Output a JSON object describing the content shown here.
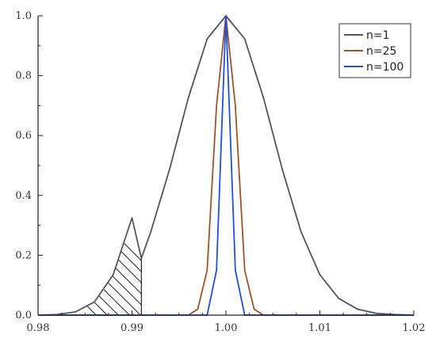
{
  "chart_data": {
    "type": "line",
    "title": "",
    "xlabel": "",
    "ylabel": "",
    "xlim": [
      0.98,
      1.02
    ],
    "ylim": [
      0,
      1.0
    ],
    "x_ticks": [
      0.98,
      0.99,
      1.0,
      1.01,
      1.02
    ],
    "x_tick_labels": [
      "0.98",
      "0.99",
      "1.00",
      "1.01",
      "1.02"
    ],
    "y_ticks": [
      0,
      0.2,
      0.4,
      0.6,
      0.8,
      1.0
    ],
    "y_tick_labels": [
      "0.0",
      "0.2",
      "0.4",
      "0.6",
      "0.8",
      "1.0"
    ],
    "grid": false,
    "legend": "top-right",
    "series": [
      {
        "name": "n=1",
        "color": "#555555",
        "x": [
          0.98,
          0.982,
          0.984,
          0.986,
          0.988,
          0.99,
          0.991,
          0.992,
          0.994,
          0.996,
          0.998,
          1.0,
          1.002,
          1.004,
          1.006,
          1.008,
          1.01,
          1.012,
          1.014,
          1.016,
          1.018,
          1.02
        ],
        "y": [
          0.0,
          0.002,
          0.011,
          0.044,
          0.135,
          0.325,
          0.19,
          0.278,
          0.487,
          0.726,
          0.923,
          1.0,
          0.923,
          0.726,
          0.487,
          0.278,
          0.135,
          0.056,
          0.02,
          0.006,
          0.002,
          0.0
        ]
      },
      {
        "name": "n=25",
        "color": "#a0522d",
        "x": [
          0.98,
          0.996,
          0.997,
          0.998,
          0.999,
          1.0,
          1.001,
          1.002,
          1.003,
          1.004,
          1.02
        ],
        "y": [
          0.0,
          0.0,
          0.02,
          0.15,
          0.7,
          1.0,
          0.7,
          0.15,
          0.02,
          0.0,
          0.0
        ]
      },
      {
        "name": "n=100",
        "color": "#1f4fd8",
        "x": [
          0.98,
          0.998,
          0.999,
          1.0,
          1.001,
          1.002,
          1.02
        ],
        "y": [
          0.0,
          0.0,
          0.15,
          1.0,
          0.15,
          0.0,
          0.0
        ]
      }
    ],
    "shaded_region": {
      "x_from": 0.985,
      "x_to": 0.991,
      "under_series": "n=1",
      "style": "hatched"
    }
  }
}
